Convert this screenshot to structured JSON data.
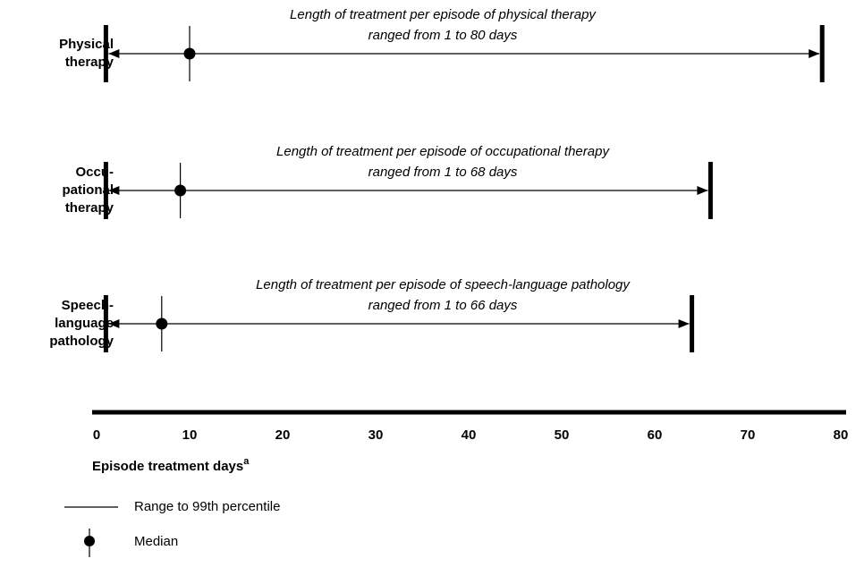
{
  "chart_data": {
    "type": "range",
    "categories": [
      [
        "Physical",
        "therapy"
      ],
      [
        "Occu-",
        "pational",
        "therapy"
      ],
      [
        "Speech-",
        "language",
        "pathology"
      ]
    ],
    "annotations": [
      [
        "Length of treatment per episode of physical therapy",
        "ranged from 1 to 80 days"
      ],
      [
        "Length of treatment per episode of occupational therapy",
        "ranged from 1 to 68 days"
      ],
      [
        "Length of treatment per episode of speech-language pathology",
        "ranged from 1 to 66 days"
      ]
    ],
    "min": [
      1,
      1,
      1
    ],
    "median": [
      10,
      9,
      7
    ],
    "p99": [
      78,
      66,
      64
    ],
    "xlim": [
      0,
      80
    ],
    "xticks": [
      0,
      10,
      20,
      30,
      40,
      50,
      60,
      70,
      80
    ],
    "xlabel": "Episode treatment days",
    "xlabel_sup": "a",
    "legend": {
      "range": "Range to 99th percentile",
      "median": "Median"
    },
    "color": "#000000"
  }
}
